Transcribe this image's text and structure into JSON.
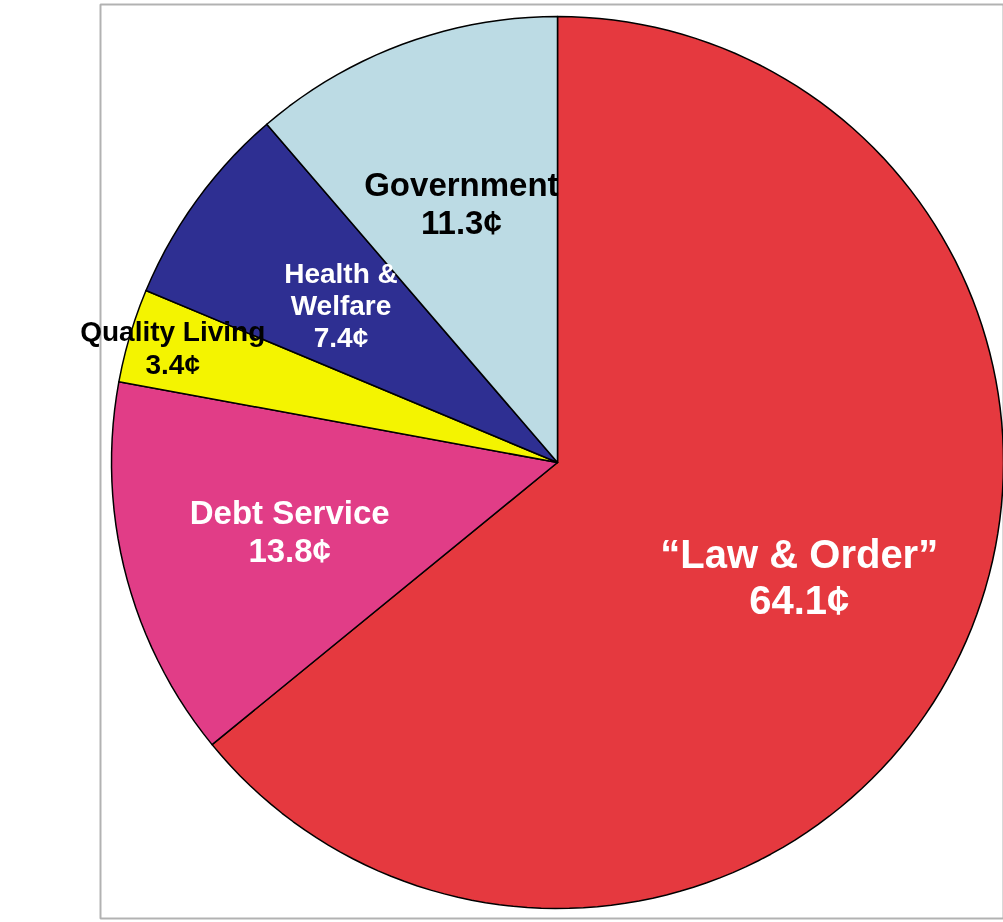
{
  "chart_data": {
    "type": "pie",
    "categories": [
      "“Law & Order”",
      "Debt Service",
      "Quality Living",
      "Health & Welfare",
      "Government"
    ],
    "values": [
      64.1,
      13.8,
      3.4,
      7.4,
      11.3
    ],
    "colors": [
      "#e5393f",
      "#e13d87",
      "#f4f400",
      "#2e2f92",
      "#bcdbe4"
    ],
    "value_labels": [
      "64.1¢",
      "13.8¢",
      "3.4¢",
      "7.4¢",
      "11.3¢"
    ]
  }
}
